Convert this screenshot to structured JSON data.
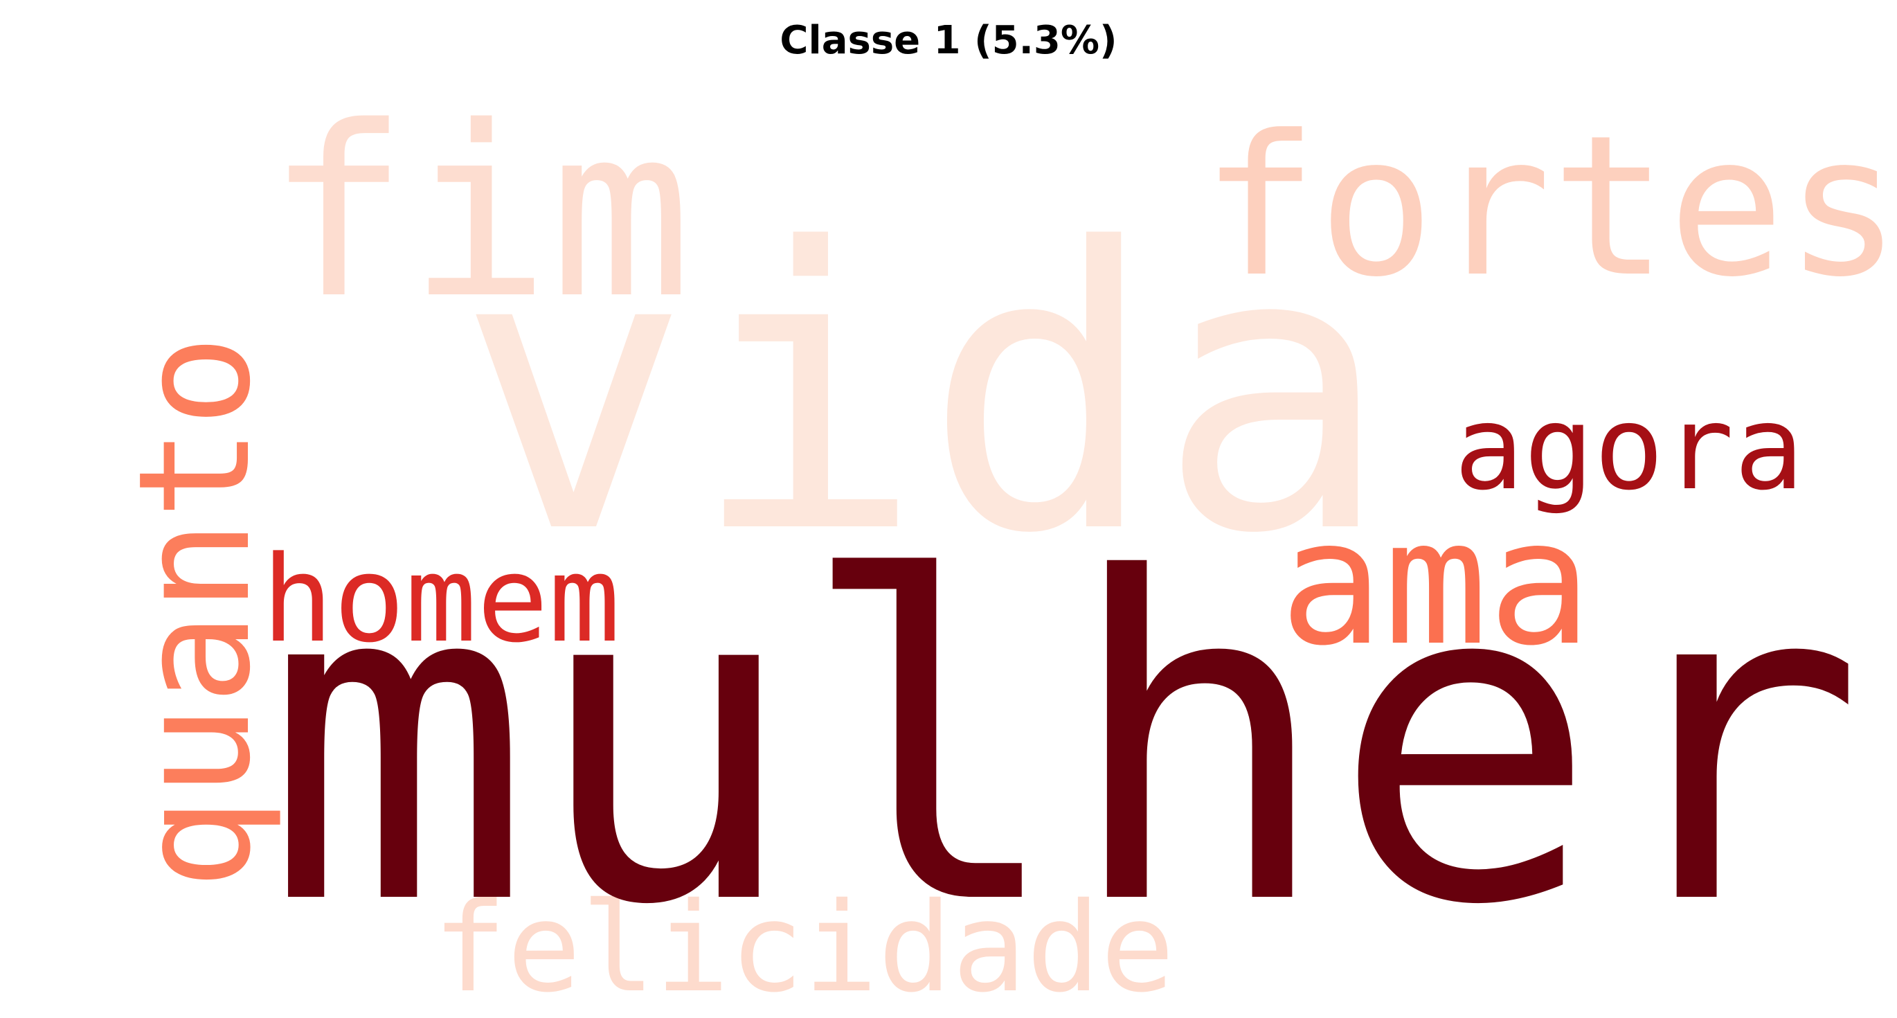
{
  "title": "Classe 1 (5.3%)",
  "words": [
    {
      "text": "vida",
      "color": "#fde7dc"
    },
    {
      "text": "fim",
      "color": "#fdddd0"
    },
    {
      "text": "fortes",
      "color": "#fdd0be"
    },
    {
      "text": "quanto",
      "color": "#fc7e5c"
    },
    {
      "text": "agora",
      "color": "#a50f15"
    },
    {
      "text": "homem",
      "color": "#dc2a25"
    },
    {
      "text": "ama",
      "color": "#fb7050"
    },
    {
      "text": "mulher",
      "color": "#67000d"
    },
    {
      "text": "felicidade",
      "color": "#fddbcd"
    }
  ]
}
